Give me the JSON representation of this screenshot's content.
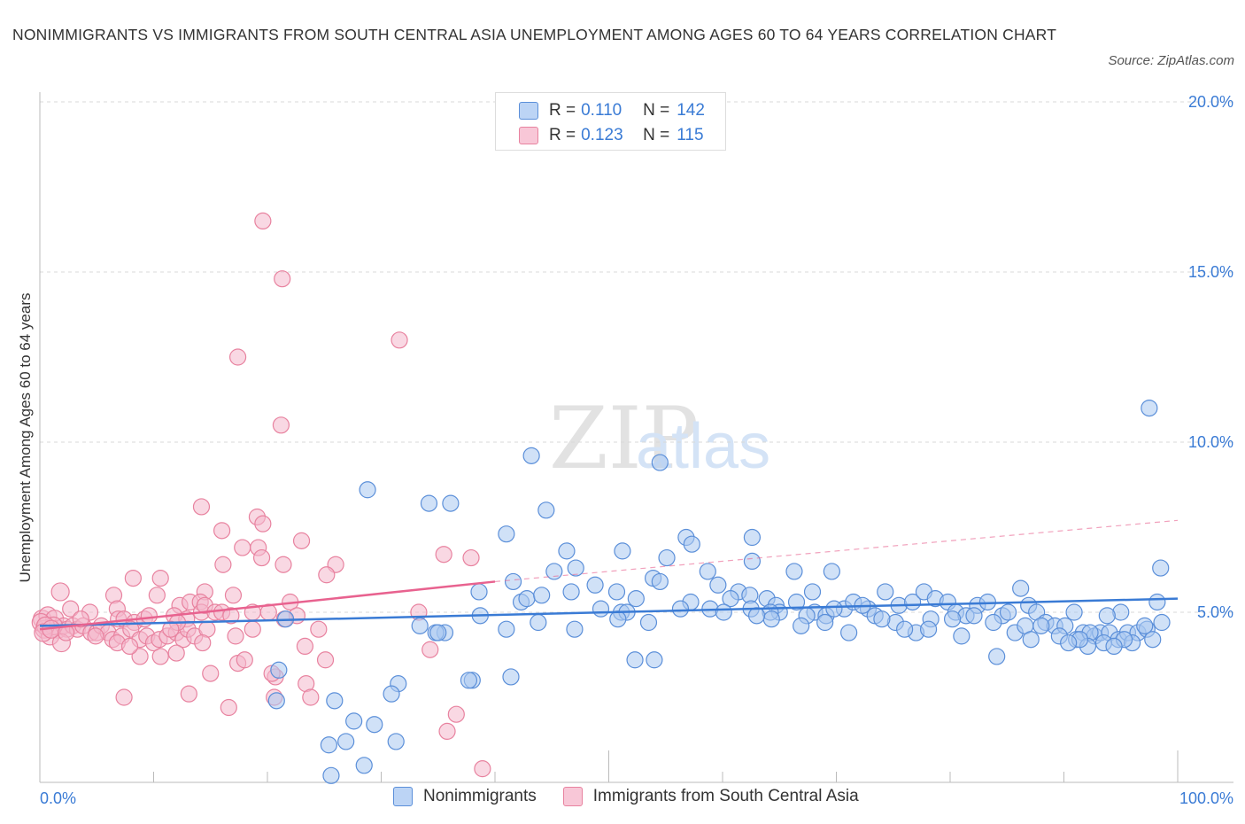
{
  "title": "NONIMMIGRANTS VS IMMIGRANTS FROM SOUTH CENTRAL ASIA UNEMPLOYMENT AMONG AGES 60 TO 64 YEARS CORRELATION CHART",
  "source": "Source: ZipAtlas.com",
  "watermark": {
    "zip": "ZIP",
    "atlas": "atlas"
  },
  "colors": {
    "blue": "#3a7bd5",
    "blue_fill": "#a9c8f0",
    "pink": "#e8628f",
    "pink_fill": "#f4b8cc",
    "grid": "#d8d8d8"
  },
  "legend": {
    "rows": [
      {
        "r_label": "R = ",
        "r_value": "0.110",
        "n_label": "N = ",
        "n_value": "142"
      },
      {
        "r_label": "R = ",
        "r_value": "0.123",
        "n_label": "N = ",
        "n_value": "115"
      }
    ]
  },
  "bottom_legend": {
    "series1": "Nonimmigrants",
    "series2": "Immigrants from South Central Asia"
  },
  "chart_data": {
    "type": "scatter",
    "ylabel": "Unemployment Among Ages 60 to 64 years",
    "xlim": [
      0,
      100
    ],
    "ylim": [
      0,
      20
    ],
    "x_tick_labels": {
      "left": "0.0%",
      "right": "100.0%"
    },
    "y_ticks": [
      5,
      10,
      15,
      20
    ],
    "y_tick_labels": [
      "5.0%",
      "10.0%",
      "15.0%",
      "20.0%"
    ],
    "grid": "horizontal dashed",
    "series": [
      {
        "name": "Nonimmigrants",
        "trend": {
          "x": [
            0,
            100
          ],
          "y": [
            4.6,
            5.4
          ]
        },
        "points": [
          [
            28.8,
            8.6
          ],
          [
            31.3,
            1.2
          ],
          [
            34.2,
            8.2
          ],
          [
            36.1,
            8.2
          ],
          [
            43.2,
            9.6
          ],
          [
            54.5,
            9.4
          ],
          [
            97.5,
            11.0
          ],
          [
            44.5,
            8.0
          ],
          [
            41.0,
            7.3
          ],
          [
            46.3,
            6.8
          ],
          [
            51.2,
            6.8
          ],
          [
            55.1,
            6.6
          ],
          [
            56.8,
            7.2
          ],
          [
            57.3,
            7.0
          ],
          [
            62.6,
            7.2
          ],
          [
            62.6,
            6.5
          ],
          [
            58.7,
            6.2
          ],
          [
            66.3,
            6.2
          ],
          [
            67.9,
            5.6
          ],
          [
            69.6,
            6.2
          ],
          [
            45.2,
            6.2
          ],
          [
            47.1,
            6.3
          ],
          [
            48.8,
            5.8
          ],
          [
            50.7,
            5.6
          ],
          [
            53.9,
            6.0
          ],
          [
            54.5,
            5.9
          ],
          [
            59.6,
            5.8
          ],
          [
            61.4,
            5.6
          ],
          [
            62.4,
            5.5
          ],
          [
            63.9,
            5.4
          ],
          [
            64.7,
            5.2
          ],
          [
            65.0,
            5.0
          ],
          [
            66.5,
            5.3
          ],
          [
            68.1,
            5.0
          ],
          [
            69.1,
            4.9
          ],
          [
            70.7,
            5.1
          ],
          [
            71.5,
            5.3
          ],
          [
            72.8,
            5.1
          ],
          [
            73.4,
            4.9
          ],
          [
            74.3,
            5.6
          ],
          [
            75.5,
            5.2
          ],
          [
            76.7,
            5.3
          ],
          [
            77.7,
            5.6
          ],
          [
            78.7,
            5.4
          ],
          [
            79.8,
            5.3
          ],
          [
            80.5,
            5.0
          ],
          [
            81.4,
            4.9
          ],
          [
            82.4,
            5.2
          ],
          [
            83.3,
            5.3
          ],
          [
            84.6,
            4.9
          ],
          [
            85.1,
            5.0
          ],
          [
            86.2,
            5.7
          ],
          [
            86.9,
            5.2
          ],
          [
            87.6,
            5.0
          ],
          [
            88.4,
            4.7
          ],
          [
            89.2,
            4.6
          ],
          [
            90.1,
            4.6
          ],
          [
            90.9,
            5.0
          ],
          [
            91.7,
            4.4
          ],
          [
            92.7,
            4.3
          ],
          [
            93.2,
            4.4
          ],
          [
            94.0,
            4.4
          ],
          [
            94.8,
            4.2
          ],
          [
            95.6,
            4.4
          ],
          [
            96.5,
            4.4
          ],
          [
            97.3,
            4.5
          ],
          [
            98.2,
            5.3
          ],
          [
            98.5,
            6.3
          ],
          [
            95.0,
            5.0
          ],
          [
            93.8,
            4.9
          ],
          [
            41.6,
            5.9
          ],
          [
            38.6,
            5.6
          ],
          [
            42.3,
            5.3
          ],
          [
            42.8,
            5.4
          ],
          [
            44.1,
            5.5
          ],
          [
            46.7,
            5.6
          ],
          [
            49.3,
            5.1
          ],
          [
            51.1,
            5.0
          ],
          [
            52.4,
            5.4
          ],
          [
            57.2,
            5.3
          ],
          [
            58.9,
            5.1
          ],
          [
            60.7,
            5.4
          ],
          [
            62.5,
            5.1
          ],
          [
            64.2,
            5.0
          ],
          [
            67.4,
            4.9
          ],
          [
            69.8,
            5.1
          ],
          [
            72.3,
            5.2
          ],
          [
            75.2,
            4.7
          ],
          [
            77.0,
            4.4
          ],
          [
            78.3,
            4.8
          ],
          [
            80.2,
            4.8
          ],
          [
            82.1,
            4.9
          ],
          [
            83.8,
            4.7
          ],
          [
            85.7,
            4.4
          ],
          [
            86.6,
            4.6
          ],
          [
            88.0,
            4.6
          ],
          [
            89.6,
            4.3
          ],
          [
            91.1,
            4.2
          ],
          [
            92.3,
            4.4
          ],
          [
            93.5,
            4.1
          ],
          [
            96.0,
            4.1
          ],
          [
            97.8,
            4.2
          ],
          [
            98.6,
            4.7
          ],
          [
            97.1,
            4.6
          ],
          [
            95.3,
            4.2
          ],
          [
            94.4,
            4.0
          ],
          [
            92.1,
            4.0
          ],
          [
            91.4,
            4.2
          ],
          [
            90.4,
            4.1
          ],
          [
            87.1,
            4.2
          ],
          [
            84.1,
            3.7
          ],
          [
            81.0,
            4.3
          ],
          [
            78.1,
            4.5
          ],
          [
            76.0,
            4.5
          ],
          [
            74.0,
            4.8
          ],
          [
            71.1,
            4.4
          ],
          [
            69.0,
            4.7
          ],
          [
            66.9,
            4.6
          ],
          [
            64.3,
            4.8
          ],
          [
            63.0,
            4.9
          ],
          [
            60.1,
            5.0
          ],
          [
            56.3,
            5.1
          ],
          [
            53.5,
            4.7
          ],
          [
            51.6,
            5.0
          ],
          [
            50.8,
            4.8
          ],
          [
            47.0,
            4.5
          ],
          [
            43.8,
            4.7
          ],
          [
            41.0,
            4.5
          ],
          [
            38.7,
            4.9
          ],
          [
            35.6,
            4.4
          ],
          [
            34.8,
            4.4
          ],
          [
            35.0,
            4.4
          ],
          [
            33.4,
            4.6
          ],
          [
            52.3,
            3.6
          ],
          [
            54.0,
            3.6
          ],
          [
            41.4,
            3.1
          ],
          [
            38.0,
            3.0
          ],
          [
            37.7,
            3.0
          ],
          [
            31.5,
            2.9
          ],
          [
            30.9,
            2.6
          ],
          [
            21.6,
            4.8
          ],
          [
            21.0,
            3.3
          ],
          [
            20.8,
            2.4
          ],
          [
            25.9,
            2.4
          ],
          [
            27.6,
            1.8
          ],
          [
            28.5,
            0.5
          ],
          [
            29.4,
            1.7
          ],
          [
            25.4,
            1.1
          ],
          [
            26.9,
            1.2
          ],
          [
            25.6,
            0.2
          ]
        ]
      },
      {
        "name": "Immigrants from South Central Asia",
        "trend": {
          "x": [
            0,
            40
          ],
          "y": [
            4.5,
            5.9
          ]
        },
        "trend_dashed": {
          "x": [
            40,
            100
          ],
          "y": [
            5.9,
            7.7
          ]
        },
        "points": [
          [
            19.6,
            16.5
          ],
          [
            21.3,
            14.8
          ],
          [
            31.6,
            13.0
          ],
          [
            17.4,
            12.5
          ],
          [
            21.2,
            10.5
          ],
          [
            14.2,
            8.1
          ],
          [
            19.1,
            7.8
          ],
          [
            19.6,
            7.6
          ],
          [
            16.0,
            7.4
          ],
          [
            23.0,
            7.1
          ],
          [
            17.8,
            6.9
          ],
          [
            19.2,
            6.9
          ],
          [
            19.5,
            6.6
          ],
          [
            35.5,
            6.7
          ],
          [
            37.9,
            6.6
          ],
          [
            16.1,
            6.4
          ],
          [
            21.4,
            6.4
          ],
          [
            26.0,
            6.4
          ],
          [
            25.2,
            6.1
          ],
          [
            8.2,
            6.0
          ],
          [
            10.6,
            6.0
          ],
          [
            1.8,
            5.6
          ],
          [
            6.5,
            5.5
          ],
          [
            10.3,
            5.5
          ],
          [
            14.5,
            5.6
          ],
          [
            17.0,
            5.5
          ],
          [
            12.3,
            5.2
          ],
          [
            13.2,
            5.3
          ],
          [
            14.1,
            5.3
          ],
          [
            22.0,
            5.3
          ],
          [
            6.8,
            5.1
          ],
          [
            2.7,
            5.1
          ],
          [
            4.4,
            5.0
          ],
          [
            6.9,
            4.8
          ],
          [
            7.4,
            4.8
          ],
          [
            8.3,
            4.7
          ],
          [
            9.2,
            4.8
          ],
          [
            9.6,
            4.9
          ],
          [
            11.8,
            4.9
          ],
          [
            12.9,
            4.8
          ],
          [
            14.2,
            5.0
          ],
          [
            14.5,
            5.2
          ],
          [
            15.4,
            5.0
          ],
          [
            16.0,
            5.0
          ],
          [
            18.7,
            5.0
          ],
          [
            20.1,
            5.0
          ],
          [
            22.6,
            4.9
          ],
          [
            33.3,
            5.0
          ],
          [
            0.2,
            4.8
          ],
          [
            0.7,
            4.9
          ],
          [
            1.3,
            4.8
          ],
          [
            1.6,
            4.5
          ],
          [
            2.1,
            4.6
          ],
          [
            2.4,
            4.5
          ],
          [
            2.9,
            4.6
          ],
          [
            3.3,
            4.5
          ],
          [
            3.8,
            4.6
          ],
          [
            4.5,
            4.4
          ],
          [
            5.0,
            4.4
          ],
          [
            5.4,
            4.6
          ],
          [
            6.0,
            4.4
          ],
          [
            6.4,
            4.2
          ],
          [
            7.2,
            4.3
          ],
          [
            8.0,
            4.5
          ],
          [
            8.8,
            4.2
          ],
          [
            9.4,
            4.3
          ],
          [
            10.0,
            4.1
          ],
          [
            10.5,
            4.2
          ],
          [
            11.2,
            4.3
          ],
          [
            12.0,
            4.4
          ],
          [
            12.6,
            4.2
          ],
          [
            13.0,
            4.5
          ],
          [
            13.6,
            4.3
          ],
          [
            14.7,
            4.5
          ],
          [
            0.4,
            4.5
          ],
          [
            0.9,
            4.3
          ],
          [
            1.2,
            4.6
          ],
          [
            1.9,
            4.1
          ],
          [
            0.1,
            4.7
          ],
          [
            0.5,
            4.6
          ],
          [
            0.3,
            4.4
          ],
          [
            1.0,
            4.5
          ],
          [
            17.2,
            4.3
          ],
          [
            18.7,
            4.5
          ],
          [
            23.3,
            4.0
          ],
          [
            24.5,
            4.5
          ],
          [
            25.1,
            3.6
          ],
          [
            17.4,
            3.5
          ],
          [
            15.0,
            3.2
          ],
          [
            20.7,
            3.1
          ],
          [
            23.4,
            2.9
          ],
          [
            8.8,
            3.7
          ],
          [
            10.6,
            3.7
          ],
          [
            12.0,
            3.8
          ],
          [
            14.3,
            4.1
          ],
          [
            6.8,
            4.1
          ],
          [
            4.9,
            4.3
          ],
          [
            7.9,
            4.0
          ],
          [
            18.0,
            3.6
          ],
          [
            20.4,
            3.2
          ],
          [
            34.3,
            3.9
          ],
          [
            36.6,
            2.0
          ],
          [
            35.8,
            1.5
          ],
          [
            38.9,
            0.4
          ],
          [
            7.4,
            2.5
          ],
          [
            13.1,
            2.6
          ],
          [
            16.6,
            2.2
          ],
          [
            20.6,
            2.5
          ],
          [
            23.8,
            2.5
          ],
          [
            12.1,
            4.7
          ],
          [
            11.5,
            4.5
          ],
          [
            16.8,
            4.9
          ],
          [
            21.5,
            4.8
          ],
          [
            2.3,
            4.4
          ],
          [
            3.6,
            4.8
          ]
        ]
      }
    ]
  }
}
